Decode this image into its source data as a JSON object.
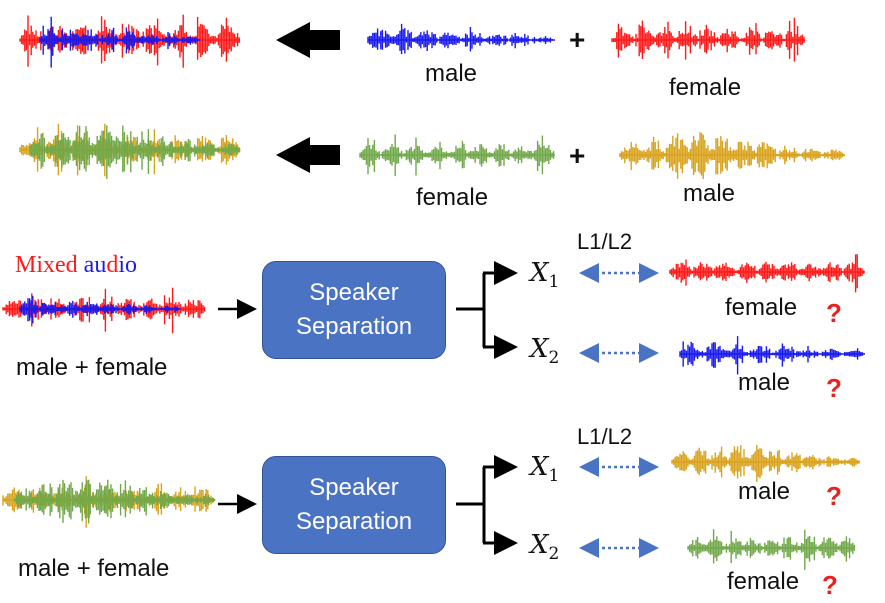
{
  "row1": {
    "left_label": "male",
    "right_label": "female",
    "plus": "+"
  },
  "row2": {
    "left_label": "female",
    "right_label": "male",
    "plus": "+"
  },
  "block1": {
    "title_part1": "Mixed",
    "title_part2": "au",
    "title_part3": "d",
    "title_part4": "io",
    "input_label": "male + female",
    "box_line1": "Speaker",
    "box_line2": "Separation",
    "loss_label": "L1/L2",
    "out1_var": "X",
    "out1_sub": "1",
    "out2_var": "X",
    "out2_sub": "2",
    "out1_label": "female",
    "out2_label": "male",
    "mark1": "?",
    "mark2": "?"
  },
  "block2": {
    "input_label": "male + female",
    "box_line1": "Speaker",
    "box_line2": "Separation",
    "loss_label": "L1/L2",
    "out1_var": "X",
    "out1_sub": "1",
    "out2_var": "X",
    "out2_sub": "2",
    "out1_label": "male",
    "out2_label": "female",
    "mark1": "?",
    "mark2": "?"
  },
  "colors": {
    "red": "#ff1a1a",
    "blue": "#1a1aee",
    "green": "#70a84a",
    "gold": "#d9a21b",
    "box": "#4a73c3",
    "arrow": "#4a73c3",
    "mark": "#e8231d"
  }
}
